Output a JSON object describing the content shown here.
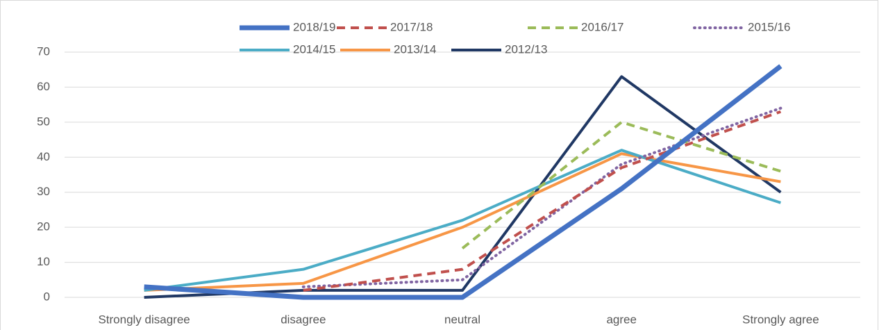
{
  "chart_data": {
    "type": "line",
    "categories": [
      "Strongly disagree",
      "disagree",
      "neutral",
      "agree",
      "Strongly agree"
    ],
    "series": [
      {
        "name": "2018/19",
        "color": "#4472c4",
        "style": "solid",
        "width": 7,
        "values": [
          3,
          0,
          0,
          31,
          66
        ]
      },
      {
        "name": "2017/18",
        "color": "#c0504d",
        "style": "dashed",
        "width": 4,
        "values": [
          null,
          2,
          8,
          37,
          53
        ]
      },
      {
        "name": "2016/17",
        "color": "#9bbb59",
        "style": "dashed",
        "width": 4,
        "values": [
          null,
          null,
          14,
          50,
          36
        ]
      },
      {
        "name": "2015/16",
        "color": "#8064a2",
        "style": "dotted",
        "width": 4,
        "values": [
          null,
          3,
          5,
          38,
          54
        ]
      },
      {
        "name": "2014/15",
        "color": "#4bacc6",
        "style": "solid",
        "width": 4,
        "values": [
          2,
          8,
          22,
          42,
          27
        ]
      },
      {
        "name": "2013/14",
        "color": "#f79646",
        "style": "solid",
        "width": 4,
        "values": [
          2,
          4,
          20,
          41,
          33
        ]
      },
      {
        "name": "2012/13",
        "color": "#203864",
        "style": "solid",
        "width": 4,
        "values": [
          0,
          2,
          2,
          63,
          30
        ]
      }
    ],
    "ylim": [
      0,
      70
    ],
    "yticks": [
      0,
      10,
      20,
      30,
      40,
      50,
      60,
      70
    ],
    "grid": true
  }
}
